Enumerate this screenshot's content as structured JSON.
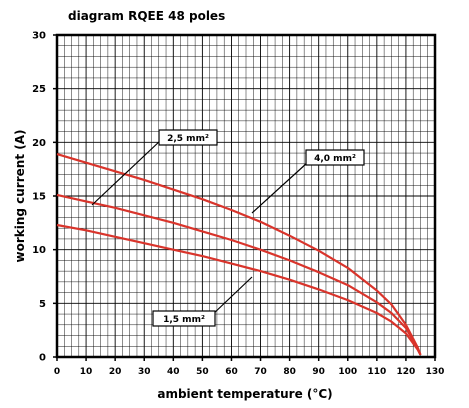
{
  "chart_data": {
    "type": "line",
    "title": "diagram RQEE 48 poles",
    "xlabel": "ambient temperature (°C)",
    "ylabel": "working current (A)",
    "xlim": [
      0,
      130
    ],
    "ylim": [
      0,
      30
    ],
    "x_ticks": [
      "0",
      "10",
      "20",
      "30",
      "40",
      "50",
      "60",
      "70",
      "80",
      "90",
      "100",
      "110",
      "120",
      "130"
    ],
    "y_ticks": [
      "0",
      "5",
      "10",
      "15",
      "20",
      "25",
      "30"
    ],
    "grid": true,
    "line_color": "#d9342b",
    "series": [
      {
        "name": "4,0 mm²",
        "x": [
          0,
          10,
          20,
          30,
          40,
          50,
          60,
          70,
          80,
          90,
          100,
          110,
          115,
          120,
          124,
          125
        ],
        "y": [
          18.9,
          18.1,
          17.3,
          16.5,
          15.6,
          14.7,
          13.7,
          12.6,
          11.3,
          9.9,
          8.3,
          6.2,
          4.9,
          3.0,
          0.9,
          0.2
        ]
      },
      {
        "name": "2,5 mm²",
        "x": [
          0,
          10,
          20,
          30,
          40,
          50,
          60,
          70,
          80,
          90,
          100,
          110,
          115,
          120,
          124,
          125
        ],
        "y": [
          15.1,
          14.5,
          13.9,
          13.2,
          12.5,
          11.7,
          10.9,
          10.0,
          9.0,
          7.9,
          6.7,
          5.1,
          4.1,
          2.7,
          0.8,
          0.2
        ]
      },
      {
        "name": "1,5 mm²",
        "x": [
          0,
          10,
          20,
          30,
          40,
          50,
          60,
          70,
          80,
          90,
          100,
          110,
          115,
          120,
          124,
          125
        ],
        "y": [
          12.3,
          11.8,
          11.2,
          10.6,
          10.0,
          9.4,
          8.7,
          8.0,
          7.2,
          6.3,
          5.3,
          4.1,
          3.3,
          2.2,
          0.7,
          0.2
        ]
      }
    ],
    "annotations": [
      "2,5 mm²",
      "4,0 mm²",
      "1,5 mm²"
    ]
  }
}
